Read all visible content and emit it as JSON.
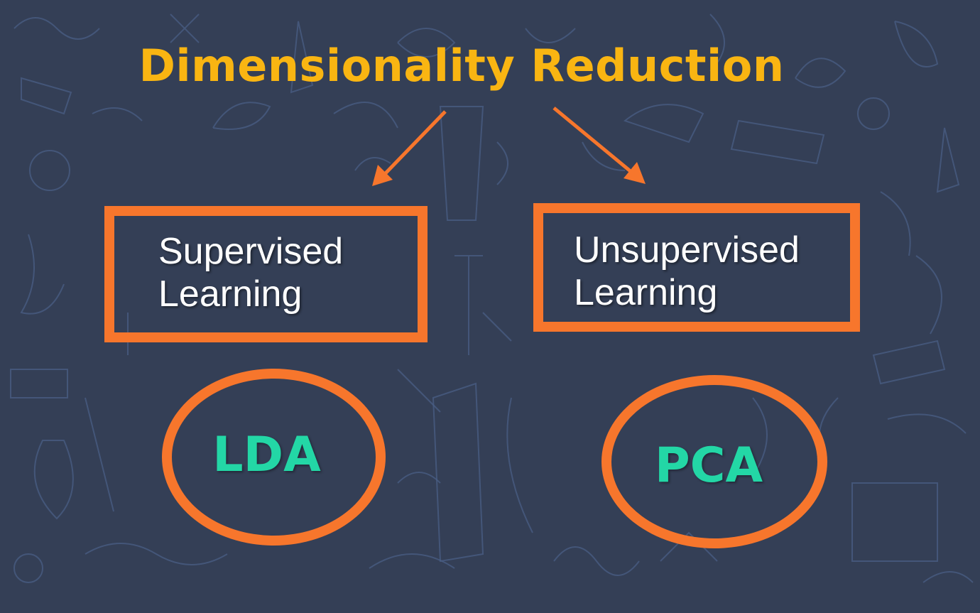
{
  "title": "Dimensionality Reduction",
  "branches": [
    {
      "category_line1": "Supervised",
      "category_line2": "Learning",
      "method": "LDA"
    },
    {
      "category_line1": "Unsupervised",
      "category_line2": "Learning",
      "method": "PCA"
    }
  ],
  "colors": {
    "background": "#343f56",
    "title": "#f9b512",
    "accent": "#f7762c",
    "method_text": "#23d7a6",
    "category_text": "#ffffff"
  }
}
